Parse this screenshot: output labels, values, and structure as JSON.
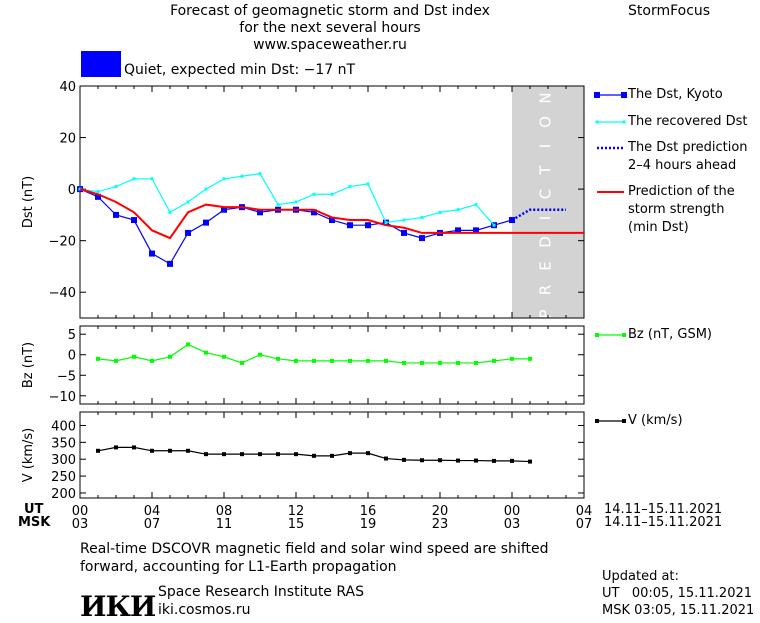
{
  "header": {
    "title_lines": [
      "Forecast of geomagnetic storm and Dst index",
      "for the next several hours",
      "www.spaceweather.ru"
    ],
    "brand": "StormFocus",
    "quiet_color": "#0000ff",
    "quiet_label": "Quiet, expected min Dst: −17 nT"
  },
  "prediction_label": "PREDICTION",
  "legend": {
    "dst_kyoto": "The Dst, Kyoto",
    "dst_recovered": "The recovered Dst",
    "dst_prediction": [
      "The Dst prediction",
      "2–4 hours ahead"
    ],
    "storm_strength": [
      "Prediction of the",
      "storm strength",
      "(min Dst)"
    ],
    "bz": "Bz (nT, GSM)",
    "v": "V (km/s)"
  },
  "time_axis": {
    "ut_label": "UT",
    "msk_label": "MSK",
    "ut_ticks": [
      "00",
      "04",
      "08",
      "12",
      "16",
      "20",
      "00",
      "04"
    ],
    "msk_ticks": [
      "03",
      "07",
      "11",
      "15",
      "19",
      "23",
      "03",
      "07"
    ],
    "date_range_ut": "14.11–15.11.2021",
    "date_range_msk": "14.11–15.11.2021"
  },
  "footer": {
    "note_lines": [
      "Real-time DSCOVR magnetic field and solar wind speed are shifted",
      "forward, accounting for L1-Earth propagation"
    ],
    "logo": "ИКИ",
    "institute": "Space Research Institute RAS",
    "site": "iki.cosmos.ru",
    "updated_label": "Updated at:",
    "updated_ut": "UT   00:05, 15.11.2021",
    "updated_msk": "MSK 03:05, 15.11.2021"
  },
  "chart_data": [
    {
      "type": "line",
      "ylabel": "Dst (nT)",
      "xlim": [
        0,
        28
      ],
      "ylim": [
        -50,
        40
      ],
      "yticks": [
        -40,
        -20,
        0,
        20,
        40
      ],
      "prediction_from_hour": 24,
      "colors": {
        "kyoto": "#0000ff",
        "recovered": "#00ffff",
        "prediction": "#0000ff",
        "storm": "#ff0000"
      },
      "series": [
        {
          "name": "The Dst, Kyoto",
          "style": "squares",
          "x": [
            0,
            1,
            2,
            3,
            4,
            5,
            6,
            7,
            8,
            9,
            10,
            11,
            12,
            13,
            14,
            15,
            16,
            17,
            18,
            19,
            20,
            21,
            22,
            23,
            24
          ],
          "y": [
            0,
            -3,
            -10,
            -12,
            -25,
            -29,
            -17,
            -13,
            -8,
            -7,
            -9,
            -8,
            -8,
            -9,
            -12,
            -14,
            -14,
            -13,
            -17,
            -19,
            -17,
            -16,
            -16,
            -14,
            -12
          ]
        },
        {
          "name": "The recovered Dst",
          "style": "small-squares",
          "x": [
            0,
            1,
            2,
            3,
            4,
            5,
            6,
            7,
            8,
            9,
            10,
            11,
            12,
            13,
            14,
            15,
            16,
            17,
            18,
            19,
            20,
            21,
            22,
            23
          ],
          "y": [
            0,
            -1,
            1,
            4,
            4,
            -9,
            -5,
            0,
            4,
            5,
            6,
            -6,
            -5,
            -2,
            -2,
            1,
            2,
            -13,
            -12,
            -11,
            -9,
            -8,
            -6,
            -14
          ]
        },
        {
          "name": "The Dst prediction 2–4 hours ahead",
          "style": "dotted",
          "x": [
            24,
            25,
            26,
            27
          ],
          "y": [
            -12,
            -8,
            -8,
            -8
          ]
        },
        {
          "name": "Prediction of the storm strength (min Dst)",
          "style": "solid",
          "x": [
            0,
            1,
            2,
            3,
            4,
            5,
            6,
            7,
            8,
            9,
            10,
            11,
            12,
            13,
            14,
            15,
            16,
            17,
            18,
            19,
            20,
            21,
            22,
            23,
            24,
            28
          ],
          "y": [
            0,
            -2,
            -5,
            -9,
            -16,
            -19,
            -9,
            -6,
            -7,
            -7,
            -8,
            -8,
            -8,
            -8,
            -11,
            -12,
            -12,
            -14,
            -15,
            -17,
            -17,
            -17,
            -17,
            -17,
            -17,
            -17
          ]
        }
      ]
    },
    {
      "type": "line",
      "ylabel": "Bz (nT)",
      "xlim": [
        0,
        28
      ],
      "ylim": [
        -12,
        7
      ],
      "yticks": [
        -10,
        -5,
        0,
        5
      ],
      "color": "#00ff00",
      "series": [
        {
          "name": "Bz (nT, GSM)",
          "x": [
            1,
            2,
            3,
            4,
            5,
            6,
            7,
            8,
            9,
            10,
            11,
            12,
            13,
            14,
            15,
            16,
            17,
            18,
            19,
            20,
            21,
            22,
            23,
            24,
            25
          ],
          "y": [
            -1,
            -1.5,
            -0.5,
            -1.5,
            -0.5,
            2.5,
            0.5,
            -0.5,
            -2,
            0,
            -1,
            -1.5,
            -1.5,
            -1.5,
            -1.5,
            -1.5,
            -1.5,
            -2,
            -2,
            -2,
            -2,
            -2,
            -1.5,
            -1,
            -1
          ]
        }
      ]
    },
    {
      "type": "line",
      "ylabel": "V (km/s)",
      "xlim": [
        0,
        28
      ],
      "ylim": [
        185,
        440
      ],
      "yticks": [
        200,
        250,
        300,
        350,
        400
      ],
      "color": "#000000",
      "series": [
        {
          "name": "V (km/s)",
          "x": [
            1,
            2,
            3,
            4,
            5,
            6,
            7,
            8,
            9,
            10,
            11,
            12,
            13,
            14,
            15,
            16,
            17,
            18,
            19,
            20,
            21,
            22,
            23,
            24,
            25
          ],
          "y": [
            325,
            335,
            335,
            325,
            325,
            325,
            315,
            315,
            315,
            315,
            315,
            315,
            310,
            310,
            318,
            318,
            302,
            298,
            297,
            297,
            296,
            296,
            295,
            295,
            293
          ]
        }
      ]
    }
  ]
}
